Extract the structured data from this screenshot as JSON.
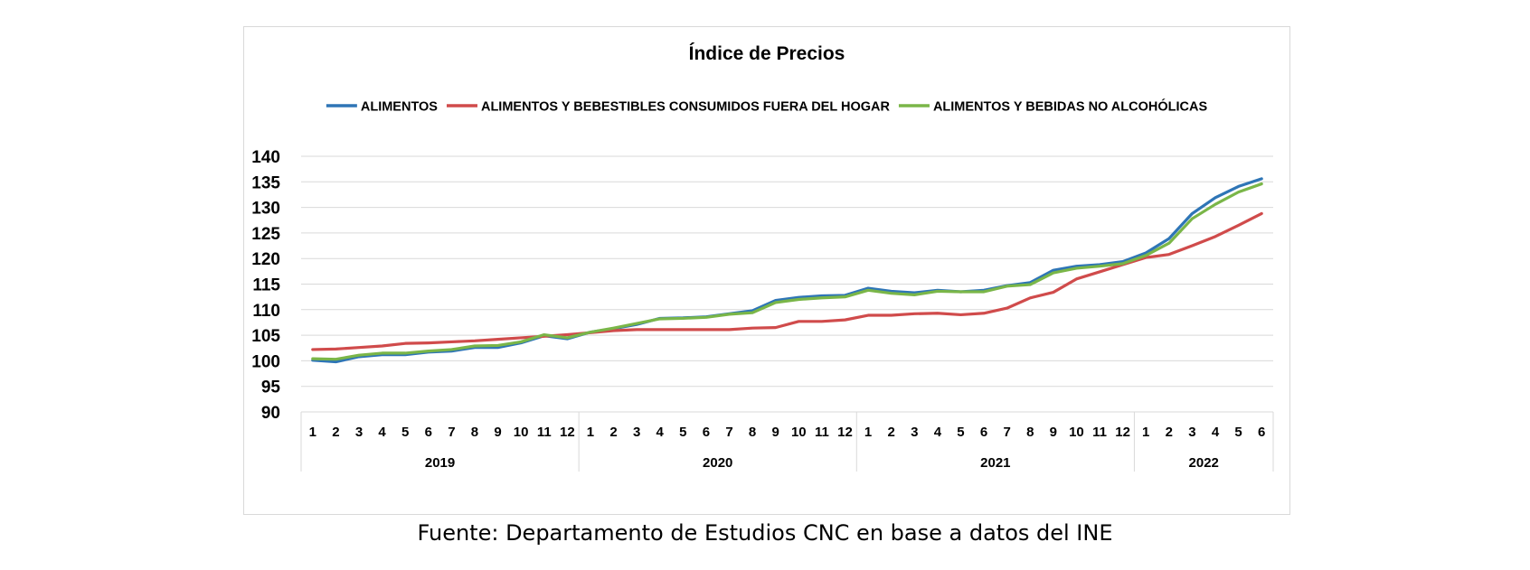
{
  "source_note": "Fuente: Departamento de Estudios CNC en base a datos del INE",
  "chart_data": {
    "type": "line",
    "title": "Índice de Precios",
    "xlabel": "",
    "ylabel": "",
    "ylim": [
      90,
      140
    ],
    "yticks": [
      90,
      95,
      100,
      105,
      110,
      115,
      120,
      125,
      130,
      135,
      140
    ],
    "grid": true,
    "legend_position": "top",
    "years": [
      {
        "label": "2019",
        "months": [
          "1",
          "2",
          "3",
          "4",
          "5",
          "6",
          "7",
          "8",
          "9",
          "10",
          "11",
          "12"
        ]
      },
      {
        "label": "2020",
        "months": [
          "1",
          "2",
          "3",
          "4",
          "5",
          "6",
          "7",
          "8",
          "9",
          "10",
          "11",
          "12"
        ]
      },
      {
        "label": "2021",
        "months": [
          "1",
          "2",
          "3",
          "4",
          "5",
          "6",
          "7",
          "8",
          "9",
          "10",
          "11",
          "12"
        ]
      },
      {
        "label": "2022",
        "months": [
          "1",
          "2",
          "3",
          "4",
          "5",
          "6"
        ]
      }
    ],
    "series": [
      {
        "name": "ALIMENTOS",
        "color": "#2e75b6",
        "values": [
          100.1,
          99.8,
          100.8,
          101.2,
          101.2,
          101.7,
          101.9,
          102.6,
          102.6,
          103.5,
          104.9,
          104.3,
          105.6,
          106.3,
          107.1,
          108.3,
          108.4,
          108.6,
          109.2,
          109.8,
          111.8,
          112.4,
          112.7,
          112.8,
          114.2,
          113.6,
          113.3,
          113.8,
          113.5,
          113.8,
          114.7,
          115.3,
          117.7,
          118.5,
          118.8,
          119.4,
          121.1,
          123.9,
          128.8,
          131.9,
          134.1,
          135.6
        ]
      },
      {
        "name": "ALIMENTOS Y BEBESTIBLES CONSUMIDOS FUERA DEL HOGAR",
        "color": "#d04b4b",
        "values": [
          102.2,
          102.3,
          102.6,
          102.9,
          103.4,
          103.5,
          103.7,
          103.9,
          104.2,
          104.5,
          104.8,
          105.1,
          105.5,
          105.9,
          106.1,
          106.1,
          106.1,
          106.1,
          106.1,
          106.4,
          106.5,
          107.7,
          107.7,
          108.0,
          108.9,
          108.9,
          109.2,
          109.3,
          109.0,
          109.3,
          110.3,
          112.3,
          113.4,
          116.0,
          117.4,
          118.8,
          120.2,
          120.8,
          122.5,
          124.3,
          126.5,
          128.8
        ]
      },
      {
        "name": "ALIMENTOS Y BEBIDAS NO ALCOHÓLICAS",
        "color": "#7ab648",
        "values": [
          100.4,
          100.3,
          101.1,
          101.5,
          101.5,
          101.9,
          102.2,
          102.9,
          103.0,
          103.7,
          105.1,
          104.5,
          105.6,
          106.4,
          107.3,
          108.2,
          108.3,
          108.5,
          109.1,
          109.4,
          111.4,
          112.0,
          112.3,
          112.5,
          113.8,
          113.2,
          112.9,
          113.6,
          113.5,
          113.5,
          114.6,
          114.9,
          117.2,
          118.1,
          118.5,
          119.0,
          120.6,
          123.0,
          127.8,
          130.6,
          133.0,
          134.6
        ]
      }
    ]
  }
}
